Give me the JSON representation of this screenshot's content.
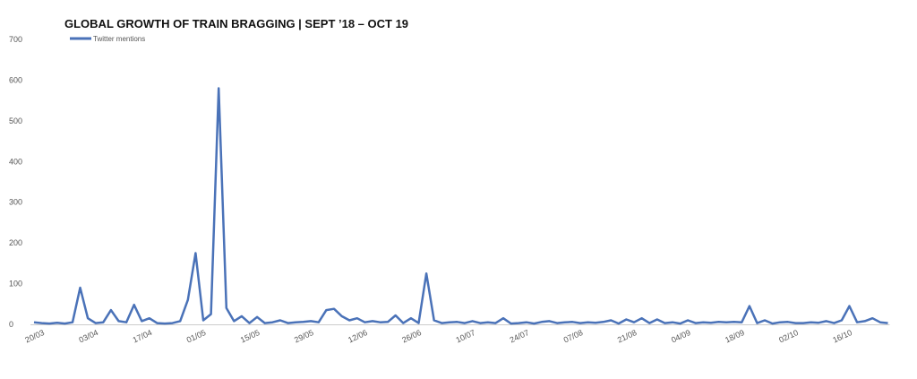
{
  "chart_data": {
    "type": "line",
    "title": "GLOBAL GROWTH OF TRAIN BRAGGING | SEPT ’18 – OCT 19",
    "categories": [
      "20/03",
      null,
      null,
      null,
      null,
      null,
      null,
      "03/04",
      null,
      null,
      null,
      null,
      null,
      null,
      "17/04",
      null,
      null,
      null,
      null,
      null,
      null,
      "01/05",
      null,
      null,
      null,
      null,
      null,
      null,
      "15/05",
      null,
      null,
      null,
      null,
      null,
      null,
      "29/05",
      null,
      null,
      null,
      null,
      null,
      null,
      "12/06",
      null,
      null,
      null,
      null,
      null,
      null,
      "26/06",
      null,
      null,
      null,
      null,
      null,
      null,
      "10/07",
      null,
      null,
      null,
      null,
      null,
      null,
      "24/07",
      null,
      null,
      null,
      null,
      null,
      null,
      "07/08",
      null,
      null,
      null,
      null,
      null,
      null,
      "21/08",
      null,
      null,
      null,
      null,
      null,
      null,
      "04/09",
      null,
      null,
      null,
      null,
      null,
      null,
      "18/09",
      null,
      null,
      null,
      null,
      null,
      null,
      "02/10",
      null,
      null,
      null,
      null,
      null,
      null,
      "16/10",
      null,
      null,
      null,
      null,
      null,
      null
    ],
    "series": [
      {
        "name": "Twitter mentions",
        "color": "#4a72b8",
        "values": [
          5,
          3,
          2,
          4,
          2,
          5,
          90,
          15,
          3,
          5,
          35,
          8,
          5,
          48,
          8,
          15,
          3,
          2,
          3,
          8,
          60,
          175,
          10,
          25,
          580,
          40,
          8,
          20,
          3,
          18,
          3,
          5,
          10,
          3,
          5,
          6,
          8,
          5,
          35,
          38,
          20,
          10,
          15,
          5,
          8,
          5,
          6,
          22,
          3,
          15,
          3,
          125,
          10,
          3,
          5,
          6,
          3,
          8,
          3,
          5,
          3,
          15,
          2,
          3,
          5,
          2,
          6,
          8,
          3,
          5,
          6,
          3,
          5,
          4,
          6,
          10,
          2,
          12,
          5,
          15,
          3,
          12,
          3,
          5,
          2,
          10,
          3,
          5,
          4,
          6,
          5,
          6,
          5,
          45,
          3,
          10,
          2,
          5,
          6,
          3,
          3,
          5,
          4,
          8,
          3,
          10,
          45,
          5,
          8,
          15,
          5,
          3
        ]
      }
    ],
    "ylim": [
      0,
      700
    ],
    "yticks": [
      0,
      100,
      200,
      300,
      400,
      500,
      600,
      700
    ]
  }
}
